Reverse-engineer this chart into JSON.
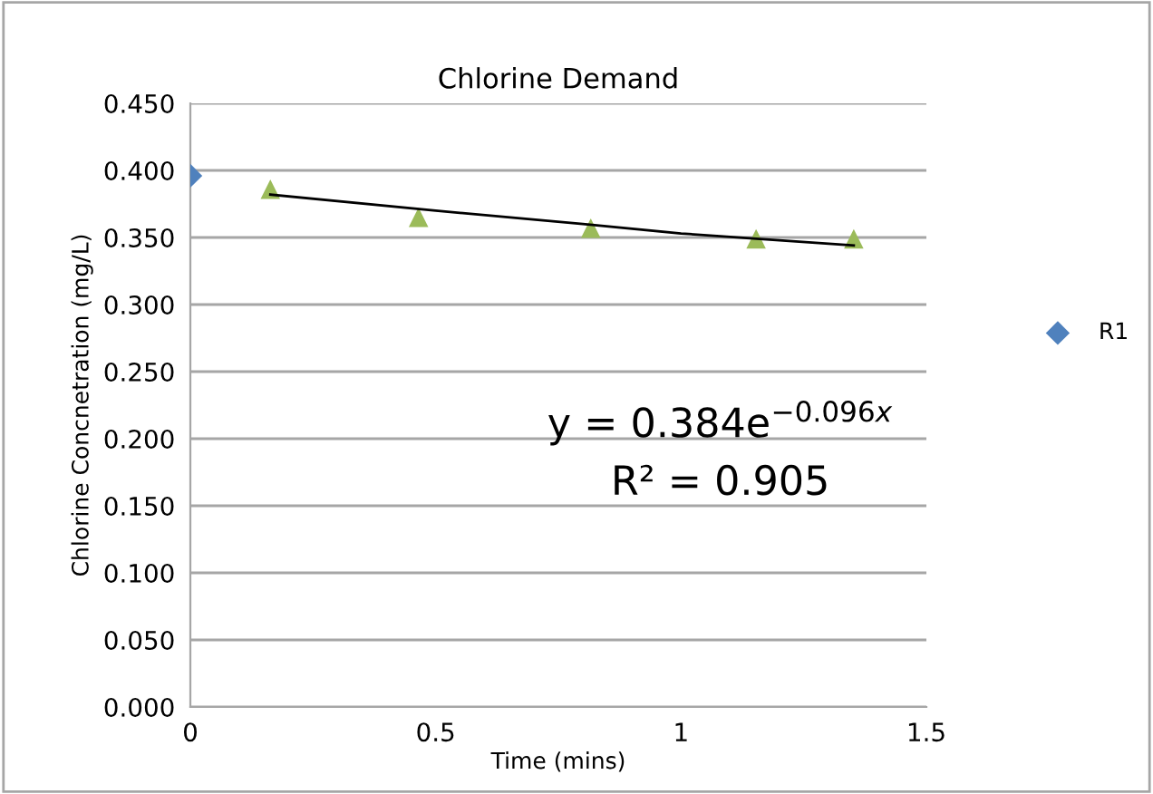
{
  "chart_data": {
    "type": "scatter",
    "title": "Chlorine Demand",
    "xlabel": "Time (mins)",
    "ylabel": "Chlorine Concnetration (mg/L)",
    "xlim": [
      0,
      1.5
    ],
    "xticks": [
      0,
      {
        "value": 0.5,
        "label": "0.5"
      },
      1,
      {
        "value": 1.5,
        "label": "1.5"
      }
    ],
    "ylim": [
      0,
      0.45
    ],
    "yticks": [
      {
        "value": 0,
        "label": "0.000"
      },
      {
        "value": 0.05,
        "label": "0.050"
      },
      {
        "value": 0.1,
        "label": "0.100"
      },
      {
        "value": 0.15,
        "label": "0.150"
      },
      {
        "value": 0.2,
        "label": "0.200"
      },
      {
        "value": 0.25,
        "label": "0.250"
      },
      {
        "value": 0.3,
        "label": "0.300"
      },
      {
        "value": 0.35,
        "label": "0.350"
      },
      {
        "value": 0.4,
        "label": "0.400"
      },
      {
        "value": 0.45,
        "label": "0.450"
      }
    ],
    "grid": "y",
    "legend": "right",
    "annotations": [
      "y = 0.384e$^{−0.096x}$",
      "R² = 0.905"
    ],
    "series": [
      {
        "name": "R1",
        "color": "#4f81bd",
        "marker": "diamond",
        "x": [
          0
        ],
        "values": [
          0.396
        ]
      },
      {
        "color": "#9bbb59",
        "marker": "triangle",
        "x": [
          0.163,
          0.465,
          0.816,
          1.153,
          1.352
        ],
        "values": [
          0.386,
          0.365,
          0.357,
          0.349,
          0.349
        ]
      },
      {
        "type": "line",
        "color": "#000000",
        "marker": "none",
        "x": [
          0.163,
          0.5,
          0.8,
          1.0,
          1.352
        ],
        "values": [
          0.382,
          0.37,
          0.36,
          0.353,
          0.344
        ]
      }
    ]
  }
}
